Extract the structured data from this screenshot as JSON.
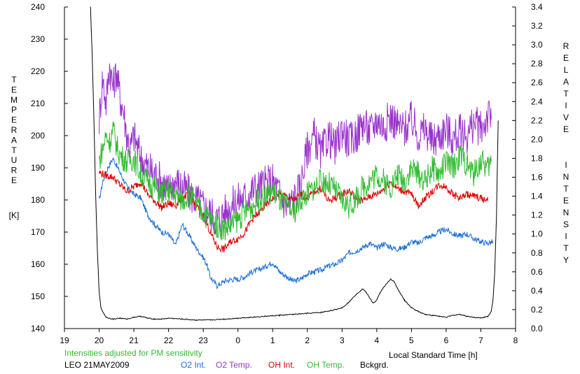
{
  "chart_data": {
    "type": "line",
    "xlabel": "Local Standard Time [h]",
    "ylabel_left_letters": [
      "T",
      "E",
      "M",
      "P",
      "E",
      "R",
      "A",
      "T",
      "U",
      "R",
      "E"
    ],
    "ylabel_left_unit": "[K]",
    "ylabel_right_letters": [
      "R",
      "E",
      "L",
      "A",
      "T",
      "I",
      "V",
      "E",
      "I",
      "N",
      "T",
      "E",
      "N",
      "S",
      "I",
      "T",
      "Y"
    ],
    "x_ticks": [
      "19",
      "20",
      "21",
      "22",
      "23",
      "0",
      "1",
      "2",
      "3",
      "4",
      "5",
      "6",
      "7",
      "8"
    ],
    "x_range_hours": [
      19,
      32
    ],
    "y_left_ticks": [
      "140",
      "150",
      "160",
      "170",
      "180",
      "190",
      "200",
      "210",
      "220",
      "230",
      "240"
    ],
    "y_left_range": [
      140,
      240
    ],
    "y_right_ticks": [
      "0.0",
      "0.2",
      "0.4",
      "0.6",
      "0.8",
      "1.0",
      "1.2",
      "1.4",
      "1.6",
      "1.8",
      "2.0",
      "2.2",
      "2.4",
      "2.6",
      "2.8",
      "3.0",
      "3.2",
      "3.4"
    ],
    "y_right_range": [
      0,
      3.4
    ],
    "grid": false,
    "note": "Intensities adjusted for PM sensitivity",
    "station_date": "LEO 21MAY2009",
    "series": [
      {
        "name": "O2 Int.",
        "axis": "right",
        "color": "#1a6fd6",
        "x": [
          20.0,
          20.1,
          20.25,
          20.4,
          20.6,
          20.8,
          21.0,
          21.2,
          21.4,
          21.6,
          21.8,
          22.0,
          22.2,
          22.4,
          22.6,
          22.8,
          23.0,
          23.1,
          23.2,
          23.4,
          23.6,
          23.8,
          24.0,
          24.2,
          24.4,
          24.6,
          24.8,
          25.0,
          25.2,
          25.4,
          25.6,
          25.8,
          26.0,
          26.2,
          26.4,
          26.6,
          26.8,
          27.0,
          27.2,
          27.4,
          27.6,
          27.8,
          28.0,
          28.2,
          28.4,
          28.6,
          28.8,
          29.0,
          29.2,
          29.4,
          29.6,
          29.8,
          30.0,
          30.2,
          30.4,
          30.6,
          30.8,
          31.0,
          31.2,
          31.35
        ],
        "y": [
          1.35,
          1.55,
          1.7,
          1.8,
          1.65,
          1.5,
          1.42,
          1.38,
          1.2,
          1.1,
          1.02,
          1.0,
          0.88,
          1.1,
          0.98,
          0.85,
          0.75,
          0.68,
          0.55,
          0.45,
          0.5,
          0.52,
          0.52,
          0.55,
          0.6,
          0.62,
          0.66,
          0.7,
          0.6,
          0.55,
          0.5,
          0.52,
          0.58,
          0.6,
          0.62,
          0.66,
          0.68,
          0.72,
          0.8,
          0.82,
          0.86,
          0.9,
          0.85,
          0.9,
          0.86,
          0.84,
          0.86,
          0.92,
          0.9,
          0.96,
          0.98,
          1.02,
          1.05,
          1.0,
          0.98,
          1.0,
          0.95,
          0.92,
          0.9,
          0.92
        ]
      },
      {
        "name": "O2 Temp.",
        "axis": "left",
        "color": "#9933cc",
        "x": [
          20.0,
          20.1,
          20.2,
          20.3,
          20.4,
          20.5,
          20.6,
          20.7,
          20.8,
          20.9,
          21.0,
          21.2,
          21.4,
          21.6,
          21.8,
          22.0,
          22.2,
          22.4,
          22.6,
          22.8,
          23.0,
          23.2,
          23.4,
          23.6,
          23.8,
          24.0,
          24.2,
          24.4,
          24.6,
          24.8,
          25.0,
          25.2,
          25.4,
          25.6,
          25.8,
          26.0,
          26.2,
          26.4,
          26.6,
          26.8,
          27.0,
          27.2,
          27.4,
          27.6,
          27.8,
          28.0,
          28.2,
          28.4,
          28.6,
          28.8,
          29.0,
          29.2,
          29.4,
          29.6,
          29.8,
          30.0,
          30.2,
          30.4,
          30.6,
          30.8,
          31.0,
          31.2,
          31.3
        ],
        "y": [
          205,
          218,
          210,
          222,
          215,
          220,
          212,
          208,
          200,
          196,
          200,
          193,
          190,
          188,
          186,
          183,
          186,
          184,
          182,
          180,
          178,
          176,
          174,
          176,
          178,
          180,
          181,
          183,
          184,
          185,
          186,
          182,
          178,
          180,
          184,
          196,
          200,
          194,
          200,
          196,
          202,
          198,
          200,
          204,
          201,
          205,
          203,
          206,
          203,
          202,
          205,
          200,
          202,
          198,
          200,
          202,
          199,
          201,
          200,
          204,
          202,
          206,
          205
        ]
      },
      {
        "name": "OH Int.",
        "axis": "right",
        "color": "#dd0000",
        "x": [
          20.0,
          20.2,
          20.4,
          20.6,
          20.8,
          21.0,
          21.2,
          21.4,
          21.6,
          21.8,
          22.0,
          22.2,
          22.4,
          22.6,
          22.8,
          23.0,
          23.2,
          23.4,
          23.6,
          23.8,
          24.0,
          24.2,
          24.4,
          24.6,
          24.8,
          25.0,
          25.2,
          25.4,
          25.6,
          25.8,
          26.0,
          26.2,
          26.4,
          26.6,
          26.8,
          27.0,
          27.2,
          27.4,
          27.6,
          27.8,
          28.0,
          28.2,
          28.4,
          28.6,
          28.8,
          29.0,
          29.2,
          29.4,
          29.6,
          29.8,
          30.0,
          30.2,
          30.4,
          30.6,
          30.8,
          31.0,
          31.2
        ],
        "y": [
          1.65,
          1.62,
          1.6,
          1.52,
          1.45,
          1.5,
          1.55,
          1.42,
          1.35,
          1.28,
          1.32,
          1.3,
          1.38,
          1.42,
          1.3,
          1.2,
          1.02,
          0.86,
          0.84,
          0.92,
          0.95,
          1.02,
          1.15,
          1.22,
          1.3,
          1.38,
          1.42,
          1.4,
          1.35,
          1.42,
          1.38,
          1.45,
          1.48,
          1.35,
          1.38,
          1.42,
          1.46,
          1.38,
          1.35,
          1.4,
          1.42,
          1.48,
          1.55,
          1.48,
          1.45,
          1.42,
          1.3,
          1.38,
          1.45,
          1.52,
          1.5,
          1.42,
          1.38,
          1.42,
          1.4,
          1.38,
          1.35
        ]
      },
      {
        "name": "OH Temp.",
        "axis": "left",
        "color": "#33bb33",
        "x": [
          20.0,
          20.1,
          20.2,
          20.3,
          20.4,
          20.5,
          20.6,
          20.8,
          21.0,
          21.2,
          21.4,
          21.6,
          21.8,
          22.0,
          22.2,
          22.4,
          22.6,
          22.8,
          23.0,
          23.2,
          23.4,
          23.6,
          23.8,
          24.0,
          24.2,
          24.4,
          24.6,
          24.8,
          25.0,
          25.2,
          25.4,
          25.6,
          25.8,
          26.0,
          26.2,
          26.4,
          26.6,
          26.8,
          27.0,
          27.2,
          27.4,
          27.6,
          27.8,
          28.0,
          28.2,
          28.4,
          28.6,
          28.8,
          29.0,
          29.2,
          29.4,
          29.6,
          29.8,
          30.0,
          30.2,
          30.4,
          30.6,
          30.8,
          31.0,
          31.2,
          31.3
        ],
        "y": [
          192,
          196,
          200,
          198,
          202,
          197,
          194,
          192,
          193,
          188,
          186,
          184,
          182,
          183,
          181,
          180,
          182,
          178,
          176,
          174,
          172,
          171,
          172,
          174,
          176,
          178,
          180,
          181,
          183,
          180,
          178,
          176,
          180,
          182,
          184,
          186,
          185,
          183,
          180,
          178,
          180,
          184,
          186,
          188,
          186,
          184,
          188,
          186,
          190,
          188,
          186,
          190,
          188,
          192,
          190,
          194,
          191,
          188,
          192,
          190,
          192
        ]
      },
      {
        "name": "Bckgrd.",
        "axis": "right",
        "color": "#000000",
        "x": [
          19.75,
          19.8,
          19.85,
          19.9,
          19.95,
          20.0,
          20.05,
          20.1,
          20.2,
          20.4,
          20.6,
          20.8,
          21.0,
          21.2,
          21.4,
          21.6,
          21.8,
          22.0,
          22.4,
          22.8,
          23.2,
          23.6,
          24.0,
          24.4,
          24.8,
          25.2,
          25.6,
          26.0,
          26.4,
          26.8,
          27.0,
          27.2,
          27.4,
          27.6,
          27.7,
          27.8,
          27.9,
          28.0,
          28.1,
          28.2,
          28.4,
          28.5,
          28.6,
          28.7,
          28.8,
          29.0,
          29.2,
          29.4,
          29.6,
          29.8,
          30.0,
          30.2,
          30.4,
          30.6,
          30.8,
          31.0,
          31.2,
          31.3,
          31.35,
          31.4,
          31.45,
          31.5
        ],
        "y": [
          3.4,
          2.9,
          2.2,
          1.4,
          0.8,
          0.4,
          0.22,
          0.18,
          0.12,
          0.1,
          0.11,
          0.1,
          0.12,
          0.13,
          0.11,
          0.1,
          0.1,
          0.11,
          0.1,
          0.09,
          0.09,
          0.1,
          0.11,
          0.12,
          0.13,
          0.14,
          0.15,
          0.16,
          0.17,
          0.2,
          0.22,
          0.28,
          0.36,
          0.42,
          0.38,
          0.32,
          0.27,
          0.3,
          0.38,
          0.44,
          0.52,
          0.5,
          0.42,
          0.36,
          0.3,
          0.22,
          0.18,
          0.15,
          0.14,
          0.13,
          0.12,
          0.14,
          0.15,
          0.13,
          0.12,
          0.11,
          0.13,
          0.18,
          0.3,
          0.6,
          1.2,
          2.2
        ]
      }
    ]
  }
}
